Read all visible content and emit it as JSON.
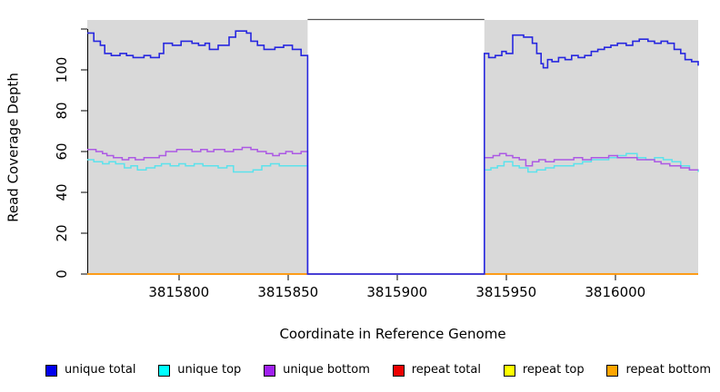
{
  "figure": {
    "background": "#FFFFFF",
    "region_fill": "#D9D9D9",
    "axis_color": "#000000",
    "gap_border_color": "#555555"
  },
  "axes": {
    "y_label": "Read Coverage Depth",
    "x_label": "Coordinate in Reference Genome",
    "y_ticks": [
      {
        "value": 0,
        "label": "0"
      },
      {
        "value": 20,
        "label": "20"
      },
      {
        "value": 40,
        "label": "40"
      },
      {
        "value": 60,
        "label": "60"
      },
      {
        "value": 80,
        "label": "80"
      },
      {
        "value": 100,
        "label": "100"
      },
      {
        "value": 120,
        "label": ""
      }
    ],
    "x_ticks": [
      {
        "value": 3815800,
        "label": "3815800"
      },
      {
        "value": 3815850,
        "label": "3815850"
      },
      {
        "value": 3815900,
        "label": "3815900"
      },
      {
        "value": 3815950,
        "label": "3815950"
      },
      {
        "value": 3816000,
        "label": "3816000"
      }
    ]
  },
  "chart_data": {
    "type": "line",
    "step": true,
    "title": "",
    "xlabel": "Coordinate in Reference Genome",
    "ylabel": "Read Coverage Depth",
    "xlim": [
      3815758,
      3816038
    ],
    "ylim": [
      0,
      124.4
    ],
    "grid": false,
    "legend_position": "bottom",
    "shaded_regions": [
      {
        "x0": 3815758,
        "x1": 3815859,
        "fill": "#D9D9D9"
      },
      {
        "x0": 3815940,
        "x1": 3816038,
        "fill": "#D9D9D9"
      }
    ],
    "masked_gap": {
      "x0": 3815859,
      "x1": 3815940
    },
    "series": [
      {
        "name": "repeat total",
        "color": "#DD0000",
        "width": 1.5,
        "points": [
          [
            3815758,
            0
          ],
          [
            3816038,
            0
          ]
        ]
      },
      {
        "name": "repeat top",
        "color": "#F2F200",
        "width": 1.5,
        "points": [
          [
            3815758,
            0
          ],
          [
            3816038,
            0
          ]
        ]
      },
      {
        "name": "repeat bottom",
        "color": "#FF9914",
        "width": 1.8,
        "points": [
          [
            3815758,
            0
          ],
          [
            3816038,
            0
          ]
        ]
      },
      {
        "name": "unique top",
        "color": "#5CE2EC",
        "width": 1.5,
        "points": [
          [
            3815758,
            56
          ],
          [
            3815761,
            55
          ],
          [
            3815765,
            54
          ],
          [
            3815768,
            55
          ],
          [
            3815771,
            54
          ],
          [
            3815775,
            52
          ],
          [
            3815778,
            53
          ],
          [
            3815781,
            51
          ],
          [
            3815785,
            52
          ],
          [
            3815789,
            53
          ],
          [
            3815792,
            54
          ],
          [
            3815796,
            53
          ],
          [
            3815800,
            54
          ],
          [
            3815803,
            53
          ],
          [
            3815807,
            54
          ],
          [
            3815811,
            53
          ],
          [
            3815814,
            53
          ],
          [
            3815818,
            52
          ],
          [
            3815822,
            53
          ],
          [
            3815825,
            50
          ],
          [
            3815830,
            50
          ],
          [
            3815834,
            51
          ],
          [
            3815838,
            53
          ],
          [
            3815842,
            54
          ],
          [
            3815846,
            53
          ],
          [
            3815850,
            53
          ],
          [
            3815854,
            53
          ],
          [
            3815859,
            0
          ],
          [
            3815940,
            51
          ],
          [
            3815943,
            52
          ],
          [
            3815946,
            53
          ],
          [
            3815949,
            55
          ],
          [
            3815953,
            53
          ],
          [
            3815956,
            52
          ],
          [
            3815960,
            50
          ],
          [
            3815964,
            51
          ],
          [
            3815968,
            52
          ],
          [
            3815972,
            53
          ],
          [
            3815977,
            53
          ],
          [
            3815981,
            54
          ],
          [
            3815985,
            55
          ],
          [
            3815989,
            56
          ],
          [
            3815993,
            56
          ],
          [
            3815997,
            57
          ],
          [
            3816001,
            58
          ],
          [
            3816005,
            59
          ],
          [
            3816010,
            57
          ],
          [
            3816014,
            56
          ],
          [
            3816018,
            57
          ],
          [
            3816022,
            56
          ],
          [
            3816026,
            55
          ],
          [
            3816030,
            53
          ],
          [
            3816034,
            51
          ],
          [
            3816038,
            50
          ]
        ]
      },
      {
        "name": "unique bottom",
        "color": "#AC59E4",
        "width": 1.5,
        "points": [
          [
            3815758,
            61
          ],
          [
            3815762,
            60
          ],
          [
            3815765,
            59
          ],
          [
            3815767,
            58
          ],
          [
            3815770,
            57
          ],
          [
            3815774,
            56
          ],
          [
            3815777,
            57
          ],
          [
            3815780,
            56
          ],
          [
            3815784,
            57
          ],
          [
            3815788,
            57
          ],
          [
            3815791,
            58
          ],
          [
            3815794,
            60
          ],
          [
            3815799,
            61
          ],
          [
            3815806,
            60
          ],
          [
            3815810,
            61
          ],
          [
            3815813,
            60
          ],
          [
            3815816,
            61
          ],
          [
            3815821,
            60
          ],
          [
            3815825,
            61
          ],
          [
            3815829,
            62
          ],
          [
            3815833,
            61
          ],
          [
            3815836,
            60
          ],
          [
            3815840,
            59
          ],
          [
            3815843,
            58
          ],
          [
            3815846,
            59
          ],
          [
            3815849,
            60
          ],
          [
            3815852,
            59
          ],
          [
            3815856,
            60
          ],
          [
            3815859,
            0
          ],
          [
            3815940,
            57
          ],
          [
            3815944,
            58
          ],
          [
            3815947,
            59
          ],
          [
            3815950,
            58
          ],
          [
            3815953,
            57
          ],
          [
            3815956,
            56
          ],
          [
            3815959,
            53
          ],
          [
            3815962,
            55
          ],
          [
            3815965,
            56
          ],
          [
            3815968,
            55
          ],
          [
            3815972,
            56
          ],
          [
            3815977,
            56
          ],
          [
            3815981,
            57
          ],
          [
            3815985,
            56
          ],
          [
            3815989,
            57
          ],
          [
            3815993,
            57
          ],
          [
            3815997,
            58
          ],
          [
            3816001,
            57
          ],
          [
            3816005,
            57
          ],
          [
            3816010,
            56
          ],
          [
            3816014,
            56
          ],
          [
            3816018,
            55
          ],
          [
            3816021,
            54
          ],
          [
            3816025,
            53
          ],
          [
            3816030,
            52
          ],
          [
            3816034,
            51
          ],
          [
            3816038,
            51
          ]
        ]
      },
      {
        "name": "unique total",
        "color": "#2727DF",
        "width": 1.6,
        "points": [
          [
            3815758,
            118
          ],
          [
            3815761,
            114
          ],
          [
            3815764,
            112
          ],
          [
            3815766,
            108
          ],
          [
            3815769,
            107
          ],
          [
            3815773,
            108
          ],
          [
            3815776,
            107
          ],
          [
            3815779,
            106
          ],
          [
            3815784,
            107
          ],
          [
            3815787,
            106
          ],
          [
            3815791,
            108
          ],
          [
            3815793,
            113
          ],
          [
            3815797,
            112
          ],
          [
            3815801,
            114
          ],
          [
            3815806,
            113
          ],
          [
            3815809,
            112
          ],
          [
            3815812,
            113
          ],
          [
            3815814,
            110
          ],
          [
            3815818,
            112
          ],
          [
            3815823,
            116
          ],
          [
            3815826,
            119
          ],
          [
            3815831,
            118
          ],
          [
            3815833,
            114
          ],
          [
            3815836,
            112
          ],
          [
            3815839,
            110
          ],
          [
            3815844,
            111
          ],
          [
            3815848,
            112
          ],
          [
            3815852,
            110
          ],
          [
            3815856,
            107
          ],
          [
            3815859,
            0
          ],
          [
            3815940,
            108
          ],
          [
            3815942,
            106
          ],
          [
            3815945,
            107
          ],
          [
            3815948,
            109
          ],
          [
            3815950,
            108
          ],
          [
            3815953,
            117
          ],
          [
            3815958,
            116
          ],
          [
            3815962,
            113
          ],
          [
            3815964,
            108
          ],
          [
            3815966,
            103
          ],
          [
            3815967,
            101
          ],
          [
            3815969,
            105
          ],
          [
            3815971,
            104
          ],
          [
            3815974,
            106
          ],
          [
            3815977,
            105
          ],
          [
            3815980,
            107
          ],
          [
            3815983,
            106
          ],
          [
            3815986,
            107
          ],
          [
            3815989,
            109
          ],
          [
            3815992,
            110
          ],
          [
            3815995,
            111
          ],
          [
            3815998,
            112
          ],
          [
            3816001,
            113
          ],
          [
            3816005,
            112
          ],
          [
            3816008,
            114
          ],
          [
            3816011,
            115
          ],
          [
            3816015,
            114
          ],
          [
            3816018,
            113
          ],
          [
            3816021,
            114
          ],
          [
            3816024,
            113
          ],
          [
            3816027,
            110
          ],
          [
            3816030,
            108
          ],
          [
            3816032,
            105
          ],
          [
            3816035,
            104
          ],
          [
            3816038,
            102
          ]
        ]
      }
    ]
  },
  "legend": {
    "items": [
      {
        "label": "unique total",
        "color": "#0000EE"
      },
      {
        "label": "unique top",
        "color": "#00FFFF"
      },
      {
        "label": "unique bottom",
        "color": "#A020F0"
      },
      {
        "label": "repeat total",
        "color": "#EE0000"
      },
      {
        "label": "repeat top",
        "color": "#FFFF00"
      },
      {
        "label": "repeat bottom",
        "color": "#FFA500"
      }
    ]
  }
}
